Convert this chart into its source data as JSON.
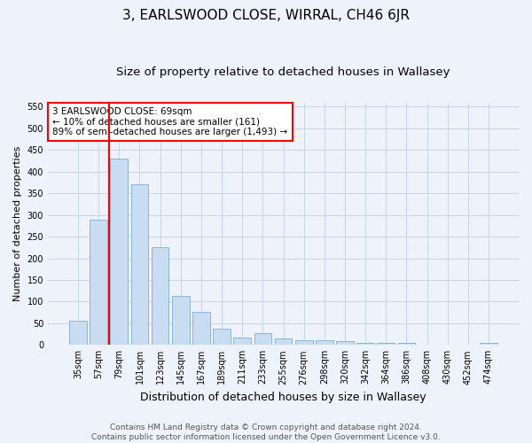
{
  "title": "3, EARLSWOOD CLOSE, WIRRAL, CH46 6JR",
  "subtitle": "Size of property relative to detached houses in Wallasey",
  "xlabel": "Distribution of detached houses by size in Wallasey",
  "ylabel": "Number of detached properties",
  "footer_line1": "Contains HM Land Registry data © Crown copyright and database right 2024.",
  "footer_line2": "Contains public sector information licensed under the Open Government Licence v3.0.",
  "categories": [
    "35sqm",
    "57sqm",
    "79sqm",
    "101sqm",
    "123sqm",
    "145sqm",
    "167sqm",
    "189sqm",
    "211sqm",
    "233sqm",
    "255sqm",
    "276sqm",
    "298sqm",
    "320sqm",
    "342sqm",
    "364sqm",
    "386sqm",
    "408sqm",
    "430sqm",
    "452sqm",
    "474sqm"
  ],
  "values": [
    55,
    290,
    430,
    370,
    225,
    113,
    76,
    38,
    17,
    27,
    15,
    10,
    10,
    8,
    5,
    5,
    5,
    0,
    0,
    0,
    5
  ],
  "bar_color": "#c9ddf2",
  "bar_edge_color": "#8ab4d8",
  "vline_color": "red",
  "vline_pos": 1.5,
  "annotation_text": "3 EARLSWOOD CLOSE: 69sqm\n← 10% of detached houses are smaller (161)\n89% of semi-detached houses are larger (1,493) →",
  "annotation_box_facecolor": "white",
  "annotation_box_edgecolor": "red",
  "ylim": [
    0,
    560
  ],
  "yticks": [
    0,
    50,
    100,
    150,
    200,
    250,
    300,
    350,
    400,
    450,
    500,
    550
  ],
  "grid_color": "#c8d4e8",
  "bg_color": "#eef2fa",
  "title_fontsize": 11,
  "subtitle_fontsize": 9.5,
  "ylabel_fontsize": 8,
  "xlabel_fontsize": 9,
  "tick_fontsize": 7,
  "annotation_fontsize": 7.5,
  "footer_fontsize": 6.5
}
